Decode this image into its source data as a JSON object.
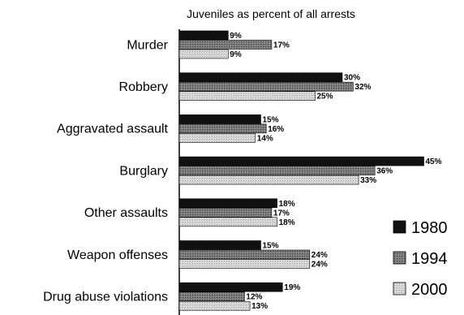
{
  "chart_data": {
    "type": "bar",
    "orientation": "horizontal",
    "title": "Juveniles as percent of all arrests",
    "categories": [
      "Murder",
      "Robbery",
      "Aggravated assault",
      "Burglary",
      "Other assaults",
      "Weapon offenses",
      "Drug abuse violations"
    ],
    "series": [
      {
        "name": "1980",
        "values": [
          9,
          30,
          15,
          45,
          18,
          15,
          19
        ],
        "color": "#111111"
      },
      {
        "name": "1994",
        "values": [
          17,
          32,
          16,
          36,
          17,
          24,
          12
        ],
        "color": "#6a6a6a"
      },
      {
        "name": "2000",
        "values": [
          9,
          25,
          14,
          33,
          18,
          24,
          13
        ],
        "color": "#cfcfcf"
      }
    ],
    "value_suffix": "%",
    "xlim": [
      0,
      50
    ],
    "legend_position": "bottom-right",
    "grid": false
  }
}
